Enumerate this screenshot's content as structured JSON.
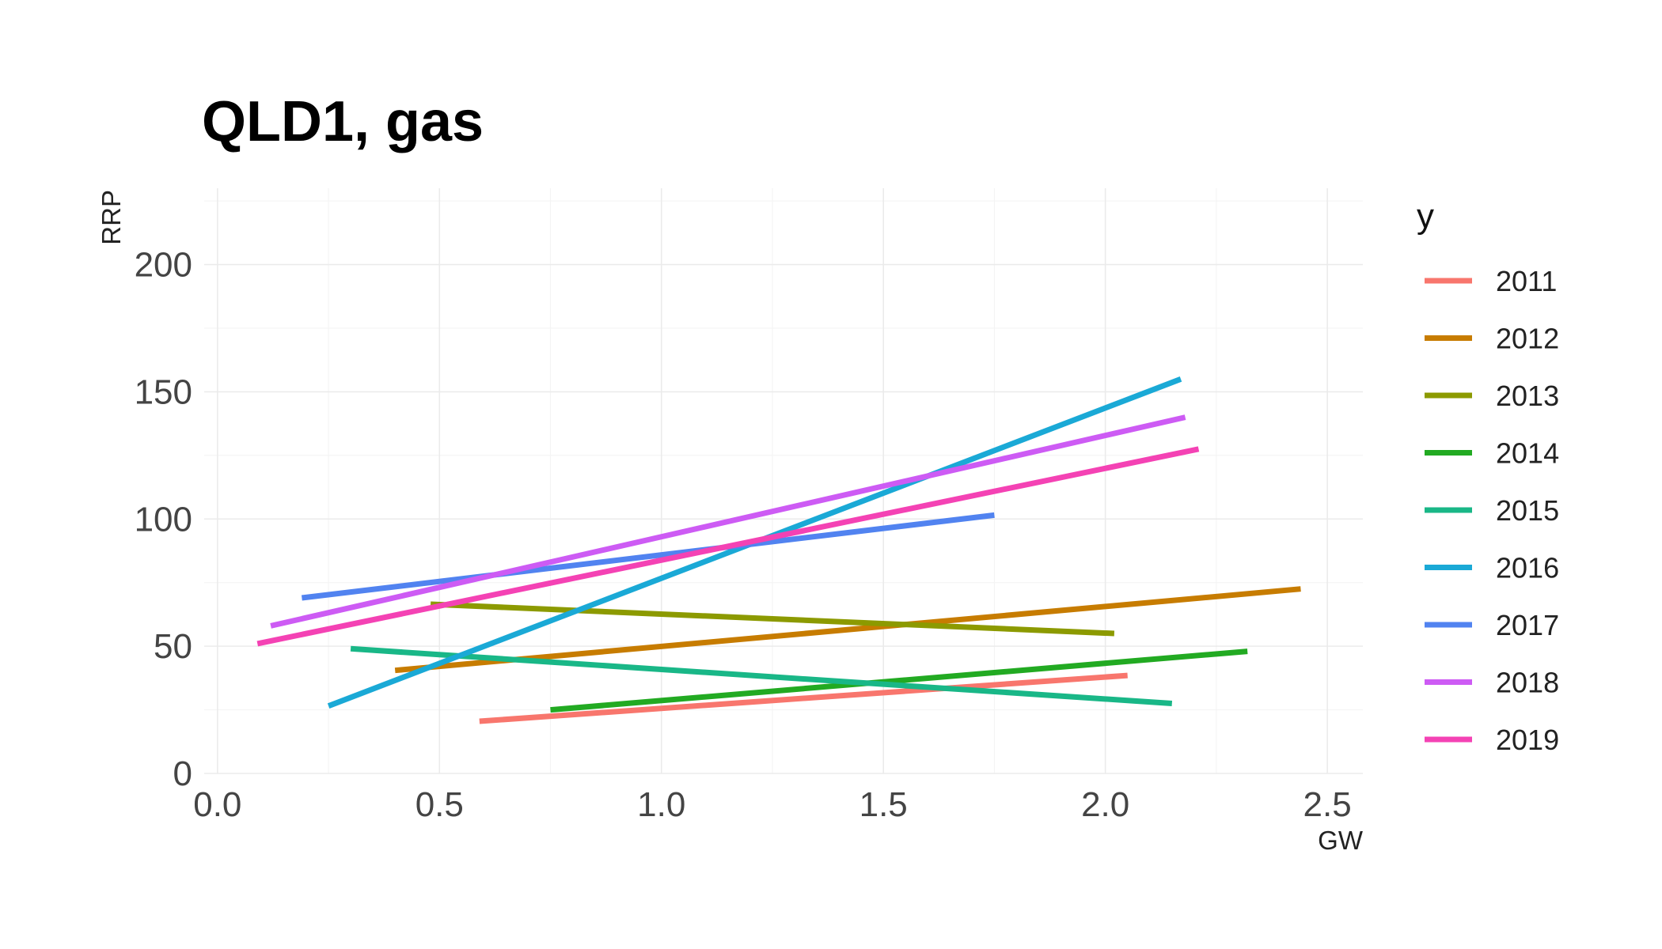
{
  "chart_data": {
    "type": "line",
    "title": "QLD1, gas",
    "xlabel": "GW",
    "ylabel": "RRP",
    "xlim": [
      -0.03,
      2.58
    ],
    "ylim": [
      0,
      230
    ],
    "x_ticks": [
      0.0,
      0.5,
      1.0,
      1.5,
      2.0,
      2.5
    ],
    "x_tick_labels": [
      "0.0",
      "0.5",
      "1.0",
      "1.5",
      "2.0",
      "2.5"
    ],
    "y_ticks": [
      0,
      50,
      100,
      150,
      200
    ],
    "y_tick_labels": [
      "0",
      "50",
      "100",
      "150",
      "200"
    ],
    "grid": true,
    "legend": {
      "title": "y",
      "position": "right"
    },
    "series": [
      {
        "name": "2011",
        "color": "#F8766D",
        "x": [
          0.59,
          2.05
        ],
        "y": [
          20.5,
          38.5
        ]
      },
      {
        "name": "2012",
        "color": "#C77C00",
        "x": [
          0.4,
          2.44
        ],
        "y": [
          40.5,
          72.5
        ]
      },
      {
        "name": "2013",
        "color": "#8C9A00",
        "x": [
          0.48,
          2.02
        ],
        "y": [
          66.5,
          55.0
        ]
      },
      {
        "name": "2014",
        "color": "#22AA22",
        "x": [
          0.75,
          2.32
        ],
        "y": [
          25.0,
          48.0
        ]
      },
      {
        "name": "2015",
        "color": "#19B787",
        "x": [
          0.3,
          2.15
        ],
        "y": [
          49.0,
          27.5
        ]
      },
      {
        "name": "2016",
        "color": "#1AA9D6",
        "x": [
          0.25,
          2.17
        ],
        "y": [
          26.5,
          155.0
        ]
      },
      {
        "name": "2017",
        "color": "#5183F0",
        "x": [
          0.19,
          1.75
        ],
        "y": [
          69.0,
          101.5
        ]
      },
      {
        "name": "2018",
        "color": "#CD5BF4",
        "x": [
          0.12,
          2.18
        ],
        "y": [
          58.0,
          140.0
        ]
      },
      {
        "name": "2019",
        "color": "#F442B4",
        "x": [
          0.09,
          2.21
        ],
        "y": [
          51.0,
          127.5
        ]
      }
    ]
  }
}
